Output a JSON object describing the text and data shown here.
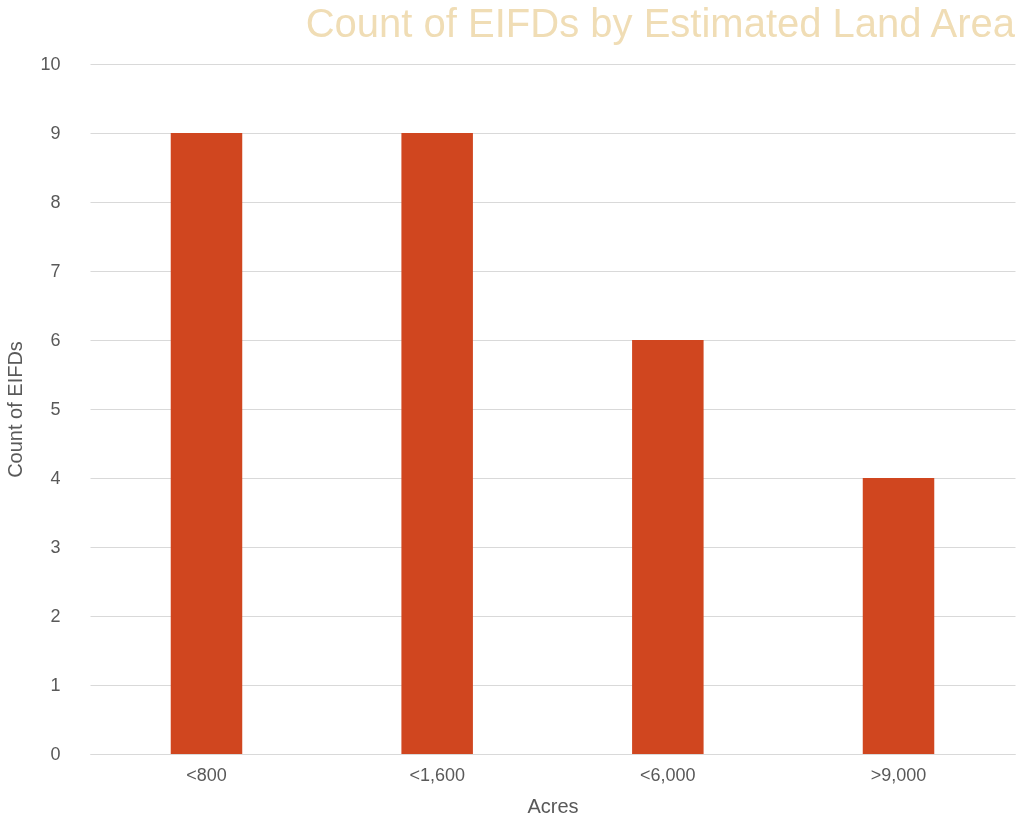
{
  "chart_data": {
    "type": "bar",
    "title": "Count of EIFDs by Estimated Land Area",
    "xlabel": "Acres",
    "ylabel": "Count of EIFDs",
    "categories": [
      "<800",
      "<1,600",
      "<6,000",
      ">9,000"
    ],
    "series": [
      {
        "color": "#d0461f",
        "values": [
          9,
          9,
          6,
          4
        ]
      }
    ],
    "ylim": [
      0,
      10
    ],
    "yticks": [
      0,
      1,
      2,
      3,
      4,
      5,
      6,
      7,
      8,
      9,
      10
    ],
    "grid": "y"
  }
}
